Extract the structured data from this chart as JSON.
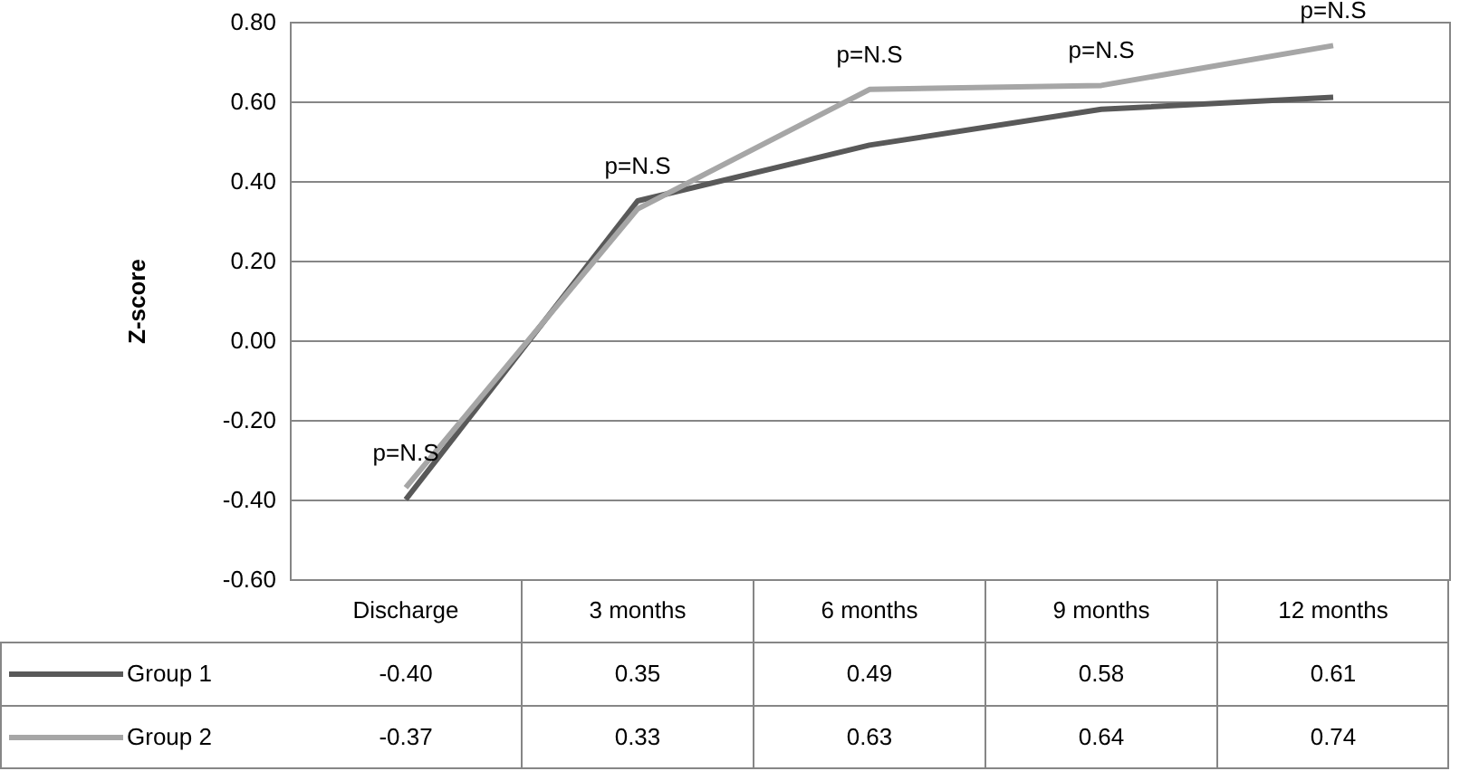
{
  "chart_data": {
    "type": "line",
    "ylabel": "Z-score",
    "categories": [
      "Discharge",
      "3 months",
      "6 months",
      "9 months",
      "12 months"
    ],
    "series": [
      {
        "name": "Group 1",
        "color": "#595959",
        "values": [
          -0.4,
          0.35,
          0.49,
          0.58,
          0.61
        ],
        "value_labels": [
          "-0.40",
          "0.35",
          "0.49",
          "0.58",
          "0.61"
        ]
      },
      {
        "name": "Group 2",
        "color": "#a6a6a6",
        "values": [
          -0.37,
          0.33,
          0.63,
          0.64,
          0.74
        ],
        "value_labels": [
          "-0.37",
          "0.33",
          "0.63",
          "0.64",
          "0.74"
        ]
      }
    ],
    "ylim": [
      -0.6,
      0.8
    ],
    "yticks": [
      {
        "value": -0.6,
        "label": "-0.60"
      },
      {
        "value": -0.4,
        "label": "-0.40"
      },
      {
        "value": -0.2,
        "label": "-0.20"
      },
      {
        "value": 0,
        "label": "0.00"
      },
      {
        "value": 0.2,
        "label": "0.20"
      },
      {
        "value": 0.4,
        "label": "0.40"
      },
      {
        "value": 0.6,
        "label": "0.60"
      },
      {
        "value": 0.8,
        "label": "0.80"
      }
    ],
    "grid": "y",
    "legend": "bottom",
    "marker": "none",
    "line_style": "solid",
    "annotations": [
      "p=N.S",
      "p=N.S",
      "p=N.S",
      "p=N.S",
      "p=N.S"
    ]
  }
}
